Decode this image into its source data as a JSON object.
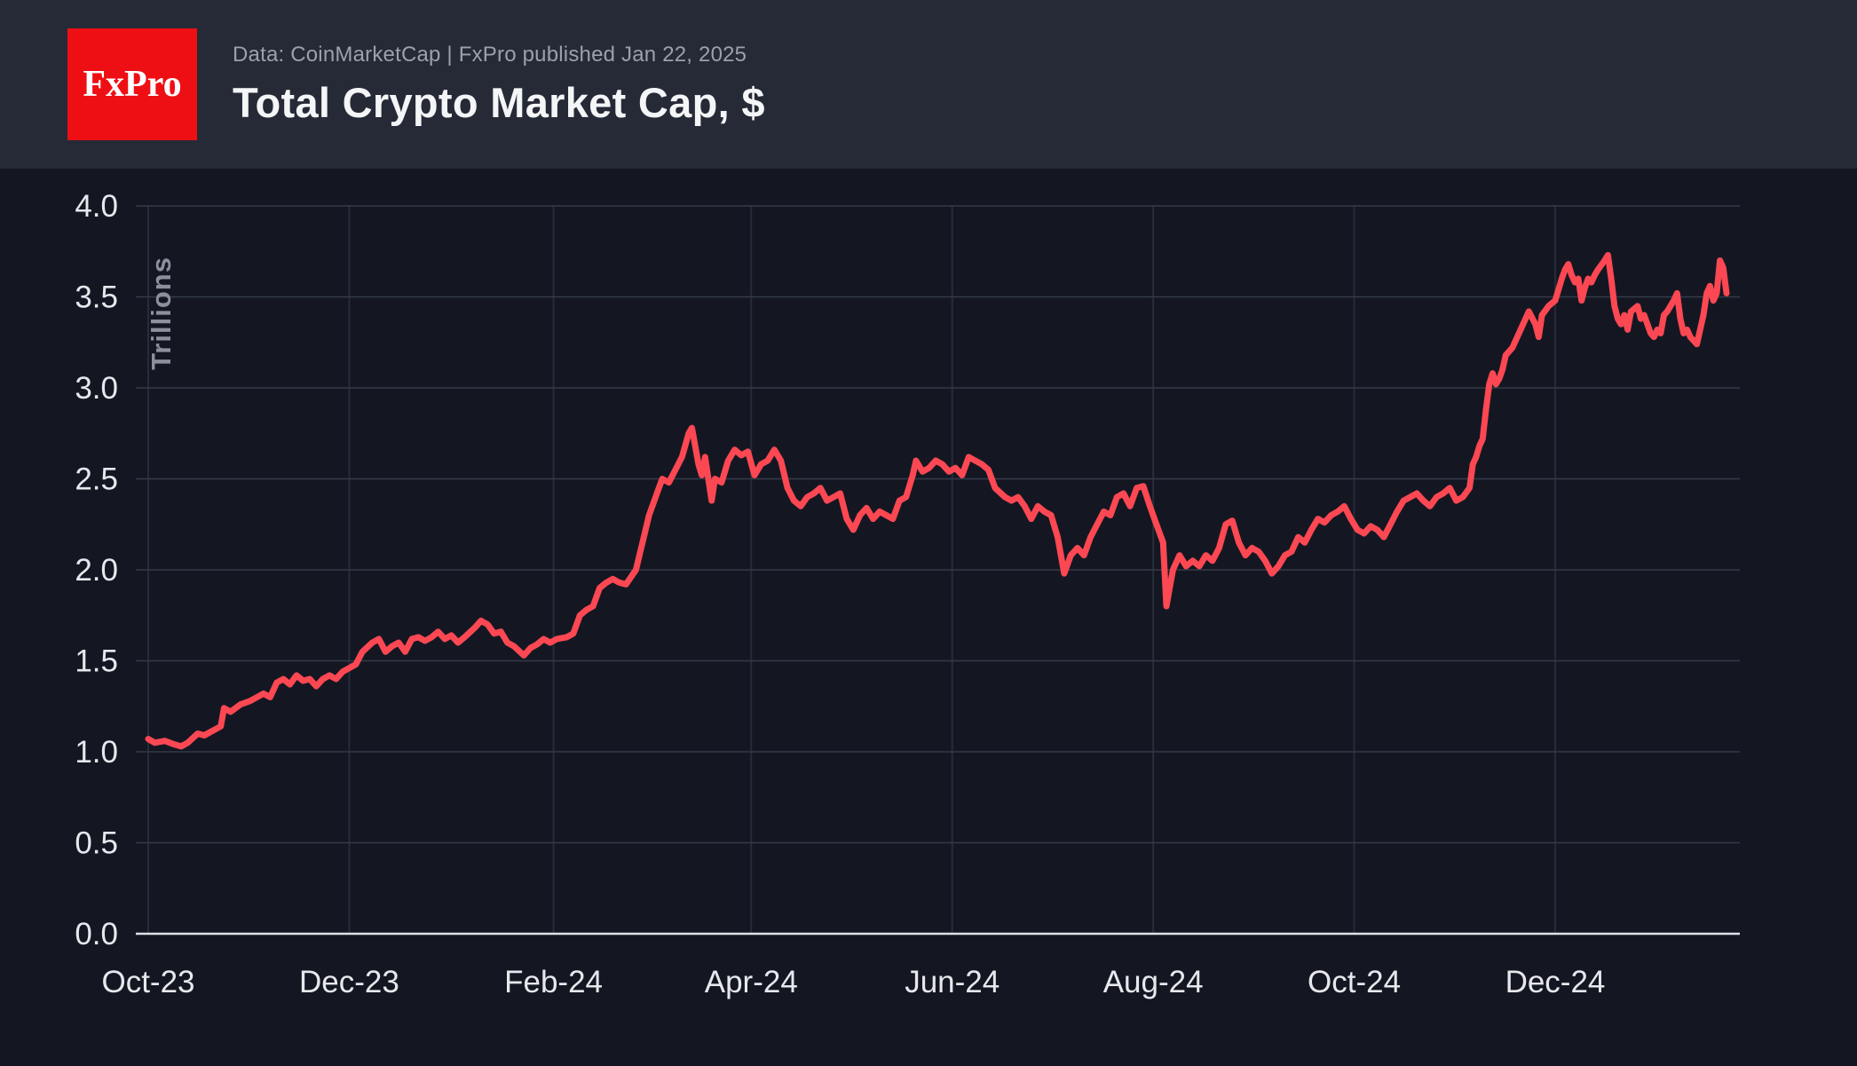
{
  "header": {
    "logo_text": "FxPro",
    "source_line": "Data: CoinMarketCap | FxPro published Jan 22, 2025",
    "title": "Total Crypto Market Cap, $"
  },
  "colors": {
    "header_background": "#262a36",
    "chart_background": "#141722",
    "line": "#fb4853",
    "logo_red": "#ee0f14",
    "gridline": "#343a48",
    "vertical_gridline": "#272c3a",
    "axis_line": "#dfe1e6",
    "tick_label": "#e6e8ec",
    "unit_label": "#8b909c"
  },
  "chart_data": {
    "type": "line",
    "title": "Total Crypto Market Cap, $",
    "xlabel": "",
    "ylabel": "Trillions",
    "ylim": [
      0,
      4.0
    ],
    "y_ticks": [
      0.0,
      0.5,
      1.0,
      1.5,
      2.0,
      2.5,
      3.0,
      3.5,
      4.0
    ],
    "x_tick_labels": [
      "Oct-23",
      "Dec-23",
      "Feb-24",
      "Apr-24",
      "Jun-24",
      "Aug-24",
      "Oct-24",
      "Dec-24"
    ],
    "x_tick_dates": [
      "2023-10-01",
      "2023-12-01",
      "2024-02-01",
      "2024-04-01",
      "2024-06-01",
      "2024-08-01",
      "2024-10-01",
      "2024-12-01"
    ],
    "grid": true,
    "legend": "none",
    "series": [
      {
        "name": "Total Crypto Market Cap ($ Trillions)",
        "points": [
          [
            "2023-10-01",
            1.07
          ],
          [
            "2023-10-03",
            1.05
          ],
          [
            "2023-10-06",
            1.06
          ],
          [
            "2023-10-09",
            1.04
          ],
          [
            "2023-10-11",
            1.03
          ],
          [
            "2023-10-13",
            1.05
          ],
          [
            "2023-10-16",
            1.1
          ],
          [
            "2023-10-18",
            1.09
          ],
          [
            "2023-10-21",
            1.12
          ],
          [
            "2023-10-23",
            1.14
          ],
          [
            "2023-10-24",
            1.24
          ],
          [
            "2023-10-26",
            1.22
          ],
          [
            "2023-10-29",
            1.26
          ],
          [
            "2023-11-01",
            1.28
          ],
          [
            "2023-11-03",
            1.3
          ],
          [
            "2023-11-05",
            1.32
          ],
          [
            "2023-11-07",
            1.3
          ],
          [
            "2023-11-09",
            1.38
          ],
          [
            "2023-11-11",
            1.4
          ],
          [
            "2023-11-13",
            1.37
          ],
          [
            "2023-11-15",
            1.42
          ],
          [
            "2023-11-17",
            1.39
          ],
          [
            "2023-11-19",
            1.4
          ],
          [
            "2023-11-21",
            1.36
          ],
          [
            "2023-11-23",
            1.4
          ],
          [
            "2023-11-25",
            1.42
          ],
          [
            "2023-11-27",
            1.4
          ],
          [
            "2023-11-29",
            1.44
          ],
          [
            "2023-12-01",
            1.46
          ],
          [
            "2023-12-03",
            1.48
          ],
          [
            "2023-12-05",
            1.55
          ],
          [
            "2023-12-08",
            1.6
          ],
          [
            "2023-12-10",
            1.62
          ],
          [
            "2023-12-12",
            1.55
          ],
          [
            "2023-12-14",
            1.58
          ],
          [
            "2023-12-16",
            1.6
          ],
          [
            "2023-12-18",
            1.55
          ],
          [
            "2023-12-20",
            1.62
          ],
          [
            "2023-12-22",
            1.63
          ],
          [
            "2023-12-24",
            1.61
          ],
          [
            "2023-12-26",
            1.63
          ],
          [
            "2023-12-28",
            1.66
          ],
          [
            "2023-12-30",
            1.62
          ],
          [
            "2024-01-01",
            1.64
          ],
          [
            "2024-01-03",
            1.6
          ],
          [
            "2024-01-05",
            1.63
          ],
          [
            "2024-01-08",
            1.68
          ],
          [
            "2024-01-10",
            1.72
          ],
          [
            "2024-01-12",
            1.7
          ],
          [
            "2024-01-14",
            1.65
          ],
          [
            "2024-01-16",
            1.66
          ],
          [
            "2024-01-18",
            1.6
          ],
          [
            "2024-01-20",
            1.58
          ],
          [
            "2024-01-23",
            1.53
          ],
          [
            "2024-01-25",
            1.57
          ],
          [
            "2024-01-27",
            1.59
          ],
          [
            "2024-01-29",
            1.62
          ],
          [
            "2024-01-31",
            1.6
          ],
          [
            "2024-02-02",
            1.62
          ],
          [
            "2024-02-05",
            1.63
          ],
          [
            "2024-02-07",
            1.65
          ],
          [
            "2024-02-09",
            1.75
          ],
          [
            "2024-02-11",
            1.78
          ],
          [
            "2024-02-13",
            1.8
          ],
          [
            "2024-02-15",
            1.9
          ],
          [
            "2024-02-17",
            1.93
          ],
          [
            "2024-02-19",
            1.95
          ],
          [
            "2024-02-21",
            1.93
          ],
          [
            "2024-02-23",
            1.92
          ],
          [
            "2024-02-26",
            2.0
          ],
          [
            "2024-02-28",
            2.15
          ],
          [
            "2024-03-01",
            2.3
          ],
          [
            "2024-03-04",
            2.45
          ],
          [
            "2024-03-05",
            2.5
          ],
          [
            "2024-03-07",
            2.48
          ],
          [
            "2024-03-09",
            2.55
          ],
          [
            "2024-03-11",
            2.62
          ],
          [
            "2024-03-13",
            2.75
          ],
          [
            "2024-03-14",
            2.78
          ],
          [
            "2024-03-16",
            2.58
          ],
          [
            "2024-03-17",
            2.52
          ],
          [
            "2024-03-18",
            2.62
          ],
          [
            "2024-03-20",
            2.38
          ],
          [
            "2024-03-21",
            2.5
          ],
          [
            "2024-03-23",
            2.48
          ],
          [
            "2024-03-25",
            2.6
          ],
          [
            "2024-03-27",
            2.66
          ],
          [
            "2024-03-29",
            2.63
          ],
          [
            "2024-03-31",
            2.65
          ],
          [
            "2024-04-02",
            2.52
          ],
          [
            "2024-04-04",
            2.58
          ],
          [
            "2024-04-06",
            2.6
          ],
          [
            "2024-04-08",
            2.66
          ],
          [
            "2024-04-10",
            2.6
          ],
          [
            "2024-04-12",
            2.45
          ],
          [
            "2024-04-14",
            2.38
          ],
          [
            "2024-04-16",
            2.35
          ],
          [
            "2024-04-18",
            2.4
          ],
          [
            "2024-04-20",
            2.42
          ],
          [
            "2024-04-22",
            2.45
          ],
          [
            "2024-04-24",
            2.38
          ],
          [
            "2024-04-26",
            2.4
          ],
          [
            "2024-04-28",
            2.42
          ],
          [
            "2024-04-30",
            2.28
          ],
          [
            "2024-05-02",
            2.22
          ],
          [
            "2024-05-04",
            2.3
          ],
          [
            "2024-05-06",
            2.34
          ],
          [
            "2024-05-08",
            2.28
          ],
          [
            "2024-05-10",
            2.32
          ],
          [
            "2024-05-12",
            2.3
          ],
          [
            "2024-05-14",
            2.28
          ],
          [
            "2024-05-16",
            2.38
          ],
          [
            "2024-05-18",
            2.4
          ],
          [
            "2024-05-20",
            2.52
          ],
          [
            "2024-05-21",
            2.6
          ],
          [
            "2024-05-23",
            2.54
          ],
          [
            "2024-05-25",
            2.56
          ],
          [
            "2024-05-27",
            2.6
          ],
          [
            "2024-05-29",
            2.58
          ],
          [
            "2024-05-31",
            2.54
          ],
          [
            "2024-06-02",
            2.56
          ],
          [
            "2024-06-04",
            2.52
          ],
          [
            "2024-06-06",
            2.62
          ],
          [
            "2024-06-08",
            2.6
          ],
          [
            "2024-06-10",
            2.58
          ],
          [
            "2024-06-12",
            2.55
          ],
          [
            "2024-06-14",
            2.45
          ],
          [
            "2024-06-17",
            2.4
          ],
          [
            "2024-06-19",
            2.38
          ],
          [
            "2024-06-21",
            2.4
          ],
          [
            "2024-06-23",
            2.35
          ],
          [
            "2024-06-25",
            2.28
          ],
          [
            "2024-06-27",
            2.35
          ],
          [
            "2024-06-29",
            2.32
          ],
          [
            "2024-07-01",
            2.3
          ],
          [
            "2024-07-03",
            2.18
          ],
          [
            "2024-07-05",
            1.98
          ],
          [
            "2024-07-07",
            2.08
          ],
          [
            "2024-07-09",
            2.12
          ],
          [
            "2024-07-11",
            2.08
          ],
          [
            "2024-07-13",
            2.18
          ],
          [
            "2024-07-15",
            2.25
          ],
          [
            "2024-07-17",
            2.32
          ],
          [
            "2024-07-19",
            2.3
          ],
          [
            "2024-07-21",
            2.4
          ],
          [
            "2024-07-23",
            2.42
          ],
          [
            "2024-07-25",
            2.35
          ],
          [
            "2024-07-27",
            2.45
          ],
          [
            "2024-07-29",
            2.46
          ],
          [
            "2024-07-31",
            2.35
          ],
          [
            "2024-08-02",
            2.25
          ],
          [
            "2024-08-04",
            2.15
          ],
          [
            "2024-08-05",
            1.8
          ],
          [
            "2024-08-07",
            2.0
          ],
          [
            "2024-08-09",
            2.08
          ],
          [
            "2024-08-11",
            2.02
          ],
          [
            "2024-08-13",
            2.05
          ],
          [
            "2024-08-15",
            2.02
          ],
          [
            "2024-08-17",
            2.08
          ],
          [
            "2024-08-19",
            2.05
          ],
          [
            "2024-08-21",
            2.12
          ],
          [
            "2024-08-23",
            2.25
          ],
          [
            "2024-08-25",
            2.27
          ],
          [
            "2024-08-27",
            2.15
          ],
          [
            "2024-08-29",
            2.08
          ],
          [
            "2024-08-31",
            2.12
          ],
          [
            "2024-09-02",
            2.1
          ],
          [
            "2024-09-04",
            2.05
          ],
          [
            "2024-09-06",
            1.98
          ],
          [
            "2024-09-08",
            2.02
          ],
          [
            "2024-09-10",
            2.08
          ],
          [
            "2024-09-12",
            2.1
          ],
          [
            "2024-09-14",
            2.18
          ],
          [
            "2024-09-16",
            2.15
          ],
          [
            "2024-09-18",
            2.22
          ],
          [
            "2024-09-20",
            2.28
          ],
          [
            "2024-09-22",
            2.26
          ],
          [
            "2024-09-24",
            2.3
          ],
          [
            "2024-09-26",
            2.32
          ],
          [
            "2024-09-28",
            2.35
          ],
          [
            "2024-09-30",
            2.28
          ],
          [
            "2024-10-02",
            2.22
          ],
          [
            "2024-10-04",
            2.2
          ],
          [
            "2024-10-06",
            2.24
          ],
          [
            "2024-10-08",
            2.22
          ],
          [
            "2024-10-10",
            2.18
          ],
          [
            "2024-10-12",
            2.25
          ],
          [
            "2024-10-14",
            2.32
          ],
          [
            "2024-10-16",
            2.38
          ],
          [
            "2024-10-18",
            2.4
          ],
          [
            "2024-10-20",
            2.42
          ],
          [
            "2024-10-22",
            2.38
          ],
          [
            "2024-10-24",
            2.35
          ],
          [
            "2024-10-26",
            2.4
          ],
          [
            "2024-10-28",
            2.42
          ],
          [
            "2024-10-30",
            2.45
          ],
          [
            "2024-11-01",
            2.38
          ],
          [
            "2024-11-03",
            2.4
          ],
          [
            "2024-11-05",
            2.45
          ],
          [
            "2024-11-06",
            2.58
          ],
          [
            "2024-11-07",
            2.62
          ],
          [
            "2024-11-08",
            2.68
          ],
          [
            "2024-11-09",
            2.72
          ],
          [
            "2024-11-10",
            2.88
          ],
          [
            "2024-11-11",
            3.02
          ],
          [
            "2024-11-12",
            3.08
          ],
          [
            "2024-11-13",
            3.02
          ],
          [
            "2024-11-14",
            3.05
          ],
          [
            "2024-11-15",
            3.1
          ],
          [
            "2024-11-16",
            3.18
          ],
          [
            "2024-11-18",
            3.22
          ],
          [
            "2024-11-20",
            3.3
          ],
          [
            "2024-11-22",
            3.38
          ],
          [
            "2024-11-23",
            3.42
          ],
          [
            "2024-11-25",
            3.35
          ],
          [
            "2024-11-26",
            3.28
          ],
          [
            "2024-11-27",
            3.4
          ],
          [
            "2024-11-29",
            3.45
          ],
          [
            "2024-12-01",
            3.48
          ],
          [
            "2024-12-03",
            3.6
          ],
          [
            "2024-12-04",
            3.65
          ],
          [
            "2024-12-05",
            3.68
          ],
          [
            "2024-12-06",
            3.62
          ],
          [
            "2024-12-07",
            3.58
          ],
          [
            "2024-12-08",
            3.6
          ],
          [
            "2024-12-09",
            3.48
          ],
          [
            "2024-12-10",
            3.55
          ],
          [
            "2024-12-11",
            3.6
          ],
          [
            "2024-12-12",
            3.58
          ],
          [
            "2024-12-13",
            3.62
          ],
          [
            "2024-12-14",
            3.65
          ],
          [
            "2024-12-16",
            3.7
          ],
          [
            "2024-12-17",
            3.73
          ],
          [
            "2024-12-18",
            3.6
          ],
          [
            "2024-12-19",
            3.45
          ],
          [
            "2024-12-20",
            3.38
          ],
          [
            "2024-12-21",
            3.35
          ],
          [
            "2024-12-22",
            3.4
          ],
          [
            "2024-12-23",
            3.32
          ],
          [
            "2024-12-24",
            3.42
          ],
          [
            "2024-12-26",
            3.45
          ],
          [
            "2024-12-27",
            3.38
          ],
          [
            "2024-12-28",
            3.4
          ],
          [
            "2024-12-29",
            3.35
          ],
          [
            "2024-12-30",
            3.3
          ],
          [
            "2024-12-31",
            3.28
          ],
          [
            "2025-01-01",
            3.32
          ],
          [
            "2025-01-02",
            3.3
          ],
          [
            "2025-01-03",
            3.4
          ],
          [
            "2025-01-04",
            3.42
          ],
          [
            "2025-01-06",
            3.48
          ],
          [
            "2025-01-07",
            3.52
          ],
          [
            "2025-01-08",
            3.38
          ],
          [
            "2025-01-09",
            3.3
          ],
          [
            "2025-01-10",
            3.32
          ],
          [
            "2025-01-11",
            3.28
          ],
          [
            "2025-01-12",
            3.26
          ],
          [
            "2025-01-13",
            3.24
          ],
          [
            "2025-01-14",
            3.32
          ],
          [
            "2025-01-15",
            3.4
          ],
          [
            "2025-01-16",
            3.52
          ],
          [
            "2025-01-17",
            3.56
          ],
          [
            "2025-01-18",
            3.48
          ],
          [
            "2025-01-19",
            3.52
          ],
          [
            "2025-01-20",
            3.7
          ],
          [
            "2025-01-21",
            3.66
          ],
          [
            "2025-01-22",
            3.52
          ]
        ]
      }
    ]
  }
}
